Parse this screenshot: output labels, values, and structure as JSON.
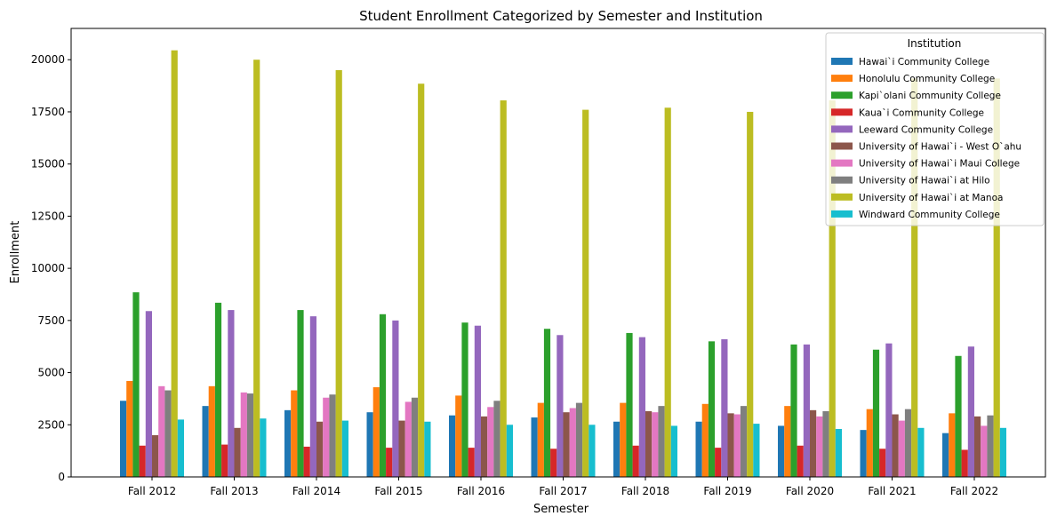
{
  "chart_data": {
    "type": "bar",
    "title": "Student Enrollment Categorized by Semester and Institution",
    "xlabel": "Semester",
    "ylabel": "Enrollment",
    "ylim": [
      0,
      21500
    ],
    "yticks": [
      0,
      2500,
      5000,
      7500,
      10000,
      12500,
      15000,
      17500,
      20000
    ],
    "legend_title": "Institution",
    "legend_position": "top-right",
    "categories": [
      "Fall 2012",
      "Fall 2013",
      "Fall 2014",
      "Fall 2015",
      "Fall 2016",
      "Fall 2017",
      "Fall 2018",
      "Fall 2019",
      "Fall 2020",
      "Fall 2021",
      "Fall 2022"
    ],
    "series": [
      {
        "name": "Hawai`i Community College",
        "color": "#1f77b4",
        "values": [
          3650,
          3400,
          3200,
          3100,
          2950,
          2850,
          2650,
          2650,
          2450,
          2250,
          2100
        ]
      },
      {
        "name": "Honolulu Community College",
        "color": "#ff7f0e",
        "values": [
          4600,
          4350,
          4150,
          4300,
          3900,
          3550,
          3550,
          3500,
          3400,
          3250,
          3050
        ]
      },
      {
        "name": "Kapi`olani Community College",
        "color": "#2ca02c",
        "values": [
          8850,
          8350,
          8000,
          7800,
          7400,
          7100,
          6900,
          6500,
          6350,
          6100,
          5800
        ]
      },
      {
        "name": "Kaua`i Community College",
        "color": "#d62728",
        "values": [
          1500,
          1550,
          1450,
          1400,
          1400,
          1350,
          1500,
          1400,
          1500,
          1350,
          1300
        ]
      },
      {
        "name": "Leeward Community College",
        "color": "#9467bd",
        "values": [
          7950,
          8000,
          7700,
          7500,
          7250,
          6800,
          6700,
          6600,
          6350,
          6400,
          6250
        ]
      },
      {
        "name": "University of Hawai`i - West O`ahu",
        "color": "#8c564b",
        "values": [
          2000,
          2350,
          2650,
          2700,
          2900,
          3100,
          3150,
          3050,
          3200,
          3000,
          2900
        ]
      },
      {
        "name": "University of Hawai`i Maui College",
        "color": "#e377c2",
        "values": [
          4350,
          4050,
          3800,
          3600,
          3350,
          3300,
          3100,
          3000,
          2900,
          2700,
          2450
        ]
      },
      {
        "name": "University of Hawai`i at Hilo",
        "color": "#7f7f7f",
        "values": [
          4150,
          4000,
          3950,
          3800,
          3650,
          3550,
          3400,
          3400,
          3150,
          3250,
          2950
        ]
      },
      {
        "name": "University of Hawai`i at Manoa",
        "color": "#bcbd22",
        "values": [
          20450,
          20000,
          19500,
          18850,
          18050,
          17600,
          17700,
          17500,
          18050,
          19100,
          19100
        ]
      },
      {
        "name": "Windward Community College",
        "color": "#17becf",
        "values": [
          2750,
          2800,
          2700,
          2650,
          2500,
          2500,
          2450,
          2550,
          2300,
          2350,
          2350
        ]
      }
    ]
  }
}
